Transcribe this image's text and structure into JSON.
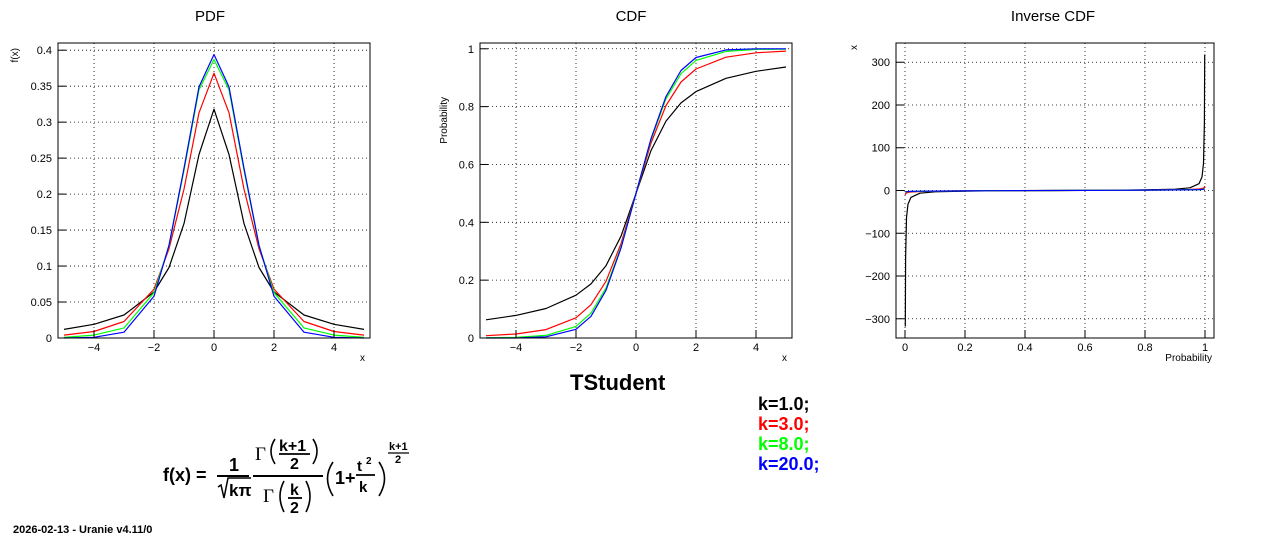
{
  "main_title": "TStudent",
  "footer": "2026-02-13 - Uranie v4.11/0",
  "legend": [
    {
      "label": "k=1.0;",
      "color": "#000000"
    },
    {
      "label": "k=3.0;",
      "color": "#ff0000"
    },
    {
      "label": "k=8.0;",
      "color": "#00ff00"
    },
    {
      "label": "k=20.0;",
      "color": "#0000ff"
    }
  ],
  "formula": {
    "lhs": "f(x) =",
    "one": "1",
    "sqrt_arg": "kπ",
    "gamma": "Γ",
    "k_plus_1": "k+1",
    "two": "2",
    "k": "k",
    "one_plus": "1+",
    "t": "t",
    "sq": "2",
    "exp_num": "k+1",
    "exp_den": "2"
  },
  "chart_data": [
    {
      "type": "line",
      "title": "PDF",
      "xlabel": "x",
      "ylabel": "f(x)",
      "xlim": [
        -5.2,
        5.2
      ],
      "ylim": [
        0,
        0.41
      ],
      "xticks": [
        -4,
        -2,
        0,
        2,
        4
      ],
      "xtick_labels": [
        "−4",
        "−2",
        "0",
        "2",
        "4"
      ],
      "yticks": [
        0,
        0.05,
        0.1,
        0.15,
        0.2,
        0.25,
        0.3,
        0.35,
        0.4
      ],
      "ytick_labels": [
        "0",
        "0.05",
        "0.1",
        "0.15",
        "0.2",
        "0.25",
        "0.3",
        "0.35",
        "0.4"
      ],
      "grid": true,
      "x": [
        -5,
        -4,
        -3,
        -2,
        -1.5,
        -1,
        -0.5,
        0,
        0.5,
        1,
        1.5,
        2,
        3,
        4,
        5
      ],
      "series": [
        {
          "k": 1,
          "color": "#000000",
          "values": [
            0.012,
            0.019,
            0.032,
            0.064,
            0.098,
            0.159,
            0.255,
            0.318,
            0.255,
            0.159,
            0.098,
            0.064,
            0.032,
            0.019,
            0.012
          ]
        },
        {
          "k": 3,
          "color": "#ff0000",
          "values": [
            0.004,
            0.009,
            0.023,
            0.068,
            0.124,
            0.207,
            0.313,
            0.368,
            0.313,
            0.207,
            0.124,
            0.068,
            0.023,
            0.009,
            0.004
          ]
        },
        {
          "k": 8,
          "color": "#00ff00",
          "values": [
            0.001,
            0.004,
            0.014,
            0.063,
            0.128,
            0.233,
            0.345,
            0.387,
            0.345,
            0.233,
            0.128,
            0.063,
            0.014,
            0.004,
            0.001
          ]
        },
        {
          "k": 20,
          "color": "#0000ff",
          "values": [
            0.0,
            0.001,
            0.008,
            0.058,
            0.129,
            0.236,
            0.349,
            0.394,
            0.349,
            0.236,
            0.129,
            0.058,
            0.008,
            0.001,
            0.0
          ]
        }
      ]
    },
    {
      "type": "line",
      "title": "CDF",
      "xlabel": "x",
      "ylabel": "Probability",
      "xlim": [
        -5.2,
        5.2
      ],
      "ylim": [
        0,
        1.02
      ],
      "xticks": [
        -4,
        -2,
        0,
        2,
        4
      ],
      "xtick_labels": [
        "−4",
        "−2",
        "0",
        "2",
        "4"
      ],
      "yticks": [
        0,
        0.2,
        0.4,
        0.6,
        0.8,
        1
      ],
      "ytick_labels": [
        "0",
        "0.2",
        "0.4",
        "0.6",
        "0.8",
        "1"
      ],
      "grid": true,
      "x": [
        -5,
        -4,
        -3,
        -2,
        -1.5,
        -1,
        -0.5,
        0,
        0.5,
        1,
        1.5,
        2,
        3,
        4,
        5
      ],
      "series": [
        {
          "k": 1,
          "color": "#000000",
          "values": [
            0.063,
            0.078,
            0.102,
            0.148,
            0.187,
            0.25,
            0.352,
            0.5,
            0.648,
            0.75,
            0.813,
            0.852,
            0.898,
            0.922,
            0.937
          ]
        },
        {
          "k": 3,
          "color": "#ff0000",
          "values": [
            0.008,
            0.014,
            0.029,
            0.07,
            0.115,
            0.196,
            0.326,
            0.5,
            0.674,
            0.804,
            0.885,
            0.93,
            0.971,
            0.986,
            0.992
          ]
        },
        {
          "k": 8,
          "color": "#00ff00",
          "values": [
            0.001,
            0.002,
            0.009,
            0.04,
            0.086,
            0.173,
            0.315,
            0.5,
            0.685,
            0.827,
            0.914,
            0.96,
            0.991,
            0.998,
            0.999
          ]
        },
        {
          "k": 20,
          "color": "#0000ff",
          "values": [
            0.0,
            0.0,
            0.004,
            0.03,
            0.075,
            0.165,
            0.311,
            0.5,
            0.689,
            0.835,
            0.925,
            0.97,
            0.996,
            1.0,
            1.0
          ]
        }
      ]
    },
    {
      "type": "line",
      "title": "Inverse CDF",
      "xlabel": "Probability",
      "ylabel": "x",
      "xlim": [
        -0.03,
        1.03
      ],
      "ylim": [
        -345,
        345
      ],
      "xticks": [
        0,
        0.2,
        0.4,
        0.6,
        0.8,
        1
      ],
      "xtick_labels": [
        "0",
        "0.2",
        "0.4",
        "0.6",
        "0.8",
        "1"
      ],
      "yticks": [
        -300,
        -200,
        -100,
        0,
        100,
        200,
        300
      ],
      "ytick_labels": [
        "−300",
        "−200",
        "−100",
        "0",
        "100",
        "200",
        "300"
      ],
      "grid": true,
      "x": [
        0.001,
        0.002,
        0.005,
        0.01,
        0.02,
        0.05,
        0.1,
        0.2,
        0.3,
        0.5,
        0.7,
        0.8,
        0.9,
        0.95,
        0.98,
        0.99,
        0.995,
        0.998,
        0.999
      ],
      "series": [
        {
          "k": 1,
          "color": "#000000",
          "values": [
            -318,
            -159,
            -63.7,
            -31.8,
            -15.9,
            -6.31,
            -3.08,
            -1.38,
            -0.73,
            0,
            0.73,
            1.38,
            3.08,
            6.31,
            15.9,
            31.8,
            63.7,
            159,
            318
          ]
        },
        {
          "k": 3,
          "color": "#ff0000",
          "values": [
            -10.2,
            -7.45,
            -5.84,
            -4.54,
            -3.48,
            -2.35,
            -1.64,
            -0.98,
            -0.58,
            0,
            0.58,
            0.98,
            1.64,
            2.35,
            3.48,
            4.54,
            5.84,
            7.45,
            10.2
          ]
        },
        {
          "k": 8,
          "color": "#00ff00",
          "values": [
            -4.5,
            -3.9,
            -3.36,
            -2.9,
            -2.45,
            -1.86,
            -1.4,
            -0.89,
            -0.55,
            0,
            0.55,
            0.89,
            1.4,
            1.86,
            2.45,
            2.9,
            3.36,
            3.9,
            4.5
          ]
        },
        {
          "k": 20,
          "color": "#0000ff",
          "values": [
            -3.55,
            -3.2,
            -2.85,
            -2.53,
            -2.2,
            -1.72,
            -1.33,
            -0.86,
            -0.53,
            0,
            0.53,
            0.86,
            1.33,
            1.72,
            2.2,
            2.53,
            2.85,
            3.2,
            3.55
          ]
        }
      ]
    }
  ]
}
